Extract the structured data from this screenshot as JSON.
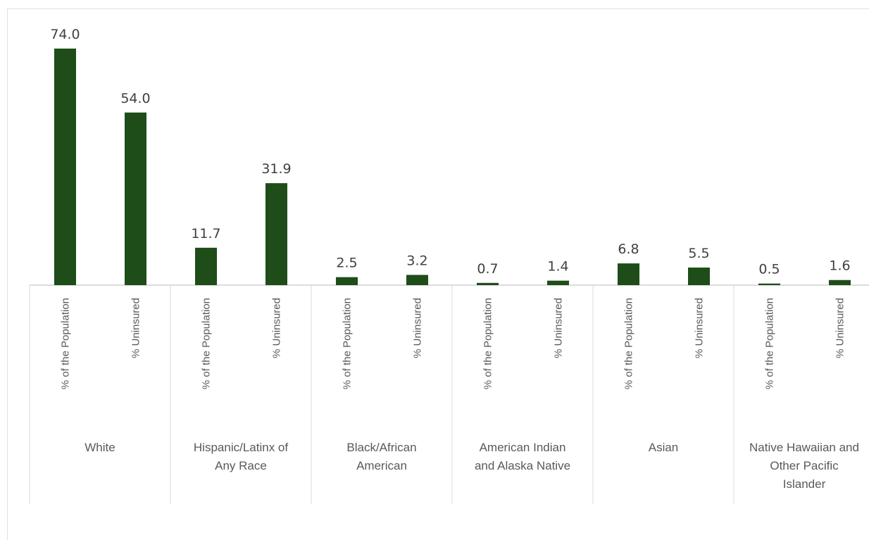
{
  "chart_data": {
    "type": "bar",
    "title": "",
    "xlabel": "",
    "ylabel": "",
    "ylim": [
      0,
      74
    ],
    "grid": false,
    "bar_color": "#1e4d19",
    "groups": [
      {
        "label_lines": [
          "White"
        ],
        "bars": [
          {
            "label": "% of the Population",
            "value": 74.0,
            "value_label": "74.0"
          },
          {
            "label": "% Uninsured",
            "value": 54.0,
            "value_label": "54.0"
          }
        ]
      },
      {
        "label_lines": [
          "Hispanic/Latinx of",
          "Any Race"
        ],
        "bars": [
          {
            "label": "% of the Population",
            "value": 11.7,
            "value_label": "11.7"
          },
          {
            "label": "% Uninsured",
            "value": 31.9,
            "value_label": "31.9"
          }
        ]
      },
      {
        "label_lines": [
          "Black/African",
          "American"
        ],
        "bars": [
          {
            "label": "% of the Population",
            "value": 2.5,
            "value_label": "2.5"
          },
          {
            "label": "% Uninsured",
            "value": 3.2,
            "value_label": "3.2"
          }
        ]
      },
      {
        "label_lines": [
          "American Indian",
          "and Alaska Native"
        ],
        "bars": [
          {
            "label": "% of the Population",
            "value": 0.7,
            "value_label": "0.7"
          },
          {
            "label": "% Uninsured",
            "value": 1.4,
            "value_label": "1.4"
          }
        ]
      },
      {
        "label_lines": [
          "Asian"
        ],
        "bars": [
          {
            "label": "% of the Population",
            "value": 6.8,
            "value_label": "6.8"
          },
          {
            "label": "% Uninsured",
            "value": 5.5,
            "value_label": "5.5"
          }
        ]
      },
      {
        "label_lines": [
          "Native Hawaiian and",
          "Other Pacific",
          "Islander"
        ],
        "bars": [
          {
            "label": "% of the Population",
            "value": 0.5,
            "value_label": "0.5"
          },
          {
            "label": "% Uninsured",
            "value": 1.6,
            "value_label": "1.6"
          }
        ]
      }
    ]
  }
}
